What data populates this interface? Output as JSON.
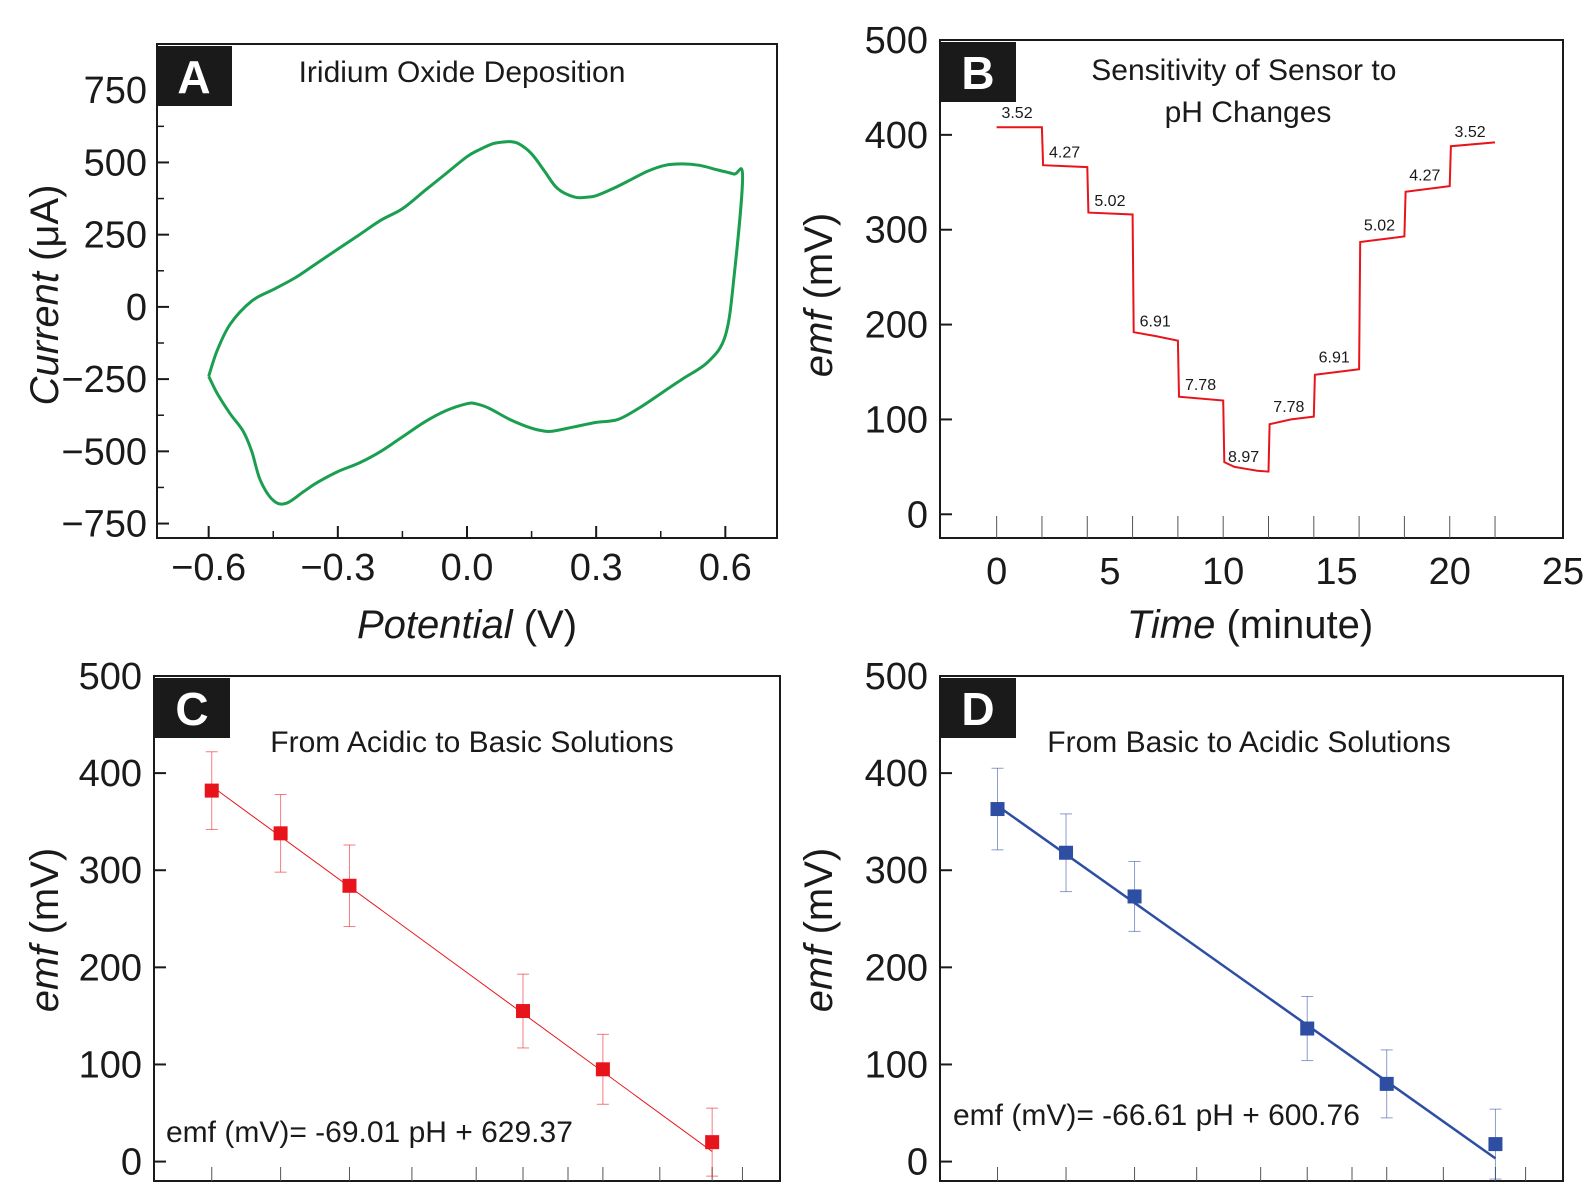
{
  "chart_data": [
    {
      "panel": "A",
      "type": "line",
      "title": "Iridium Oxide Deposition",
      "xlabel": "Potential",
      "xunit": "(V)",
      "ylabel": "Current",
      "yunit": "(μA)",
      "xlim": [
        -0.72,
        0.72
      ],
      "ylim": [
        -800,
        910
      ],
      "xticks": [
        -0.6,
        -0.3,
        0.0,
        0.3,
        0.6
      ],
      "xtick_labels": [
        "−0.6",
        "−0.3",
        "0.0",
        "0.3",
        "0.6"
      ],
      "yticks": [
        -750,
        -500,
        -250,
        0,
        250,
        500,
        750
      ],
      "ytick_labels": [
        "−750",
        "−500",
        "−250",
        "0",
        "250",
        "500",
        "750"
      ],
      "color": "#1a9e50",
      "series": [
        {
          "x": [
            -0.6,
            -0.58,
            -0.55,
            -0.5,
            -0.45,
            -0.4,
            -0.35,
            -0.3,
            -0.25,
            -0.2,
            -0.15,
            -0.1,
            -0.05,
            0.0,
            0.03,
            0.06,
            0.08,
            0.1,
            0.12,
            0.15,
            0.18,
            0.21,
            0.25,
            0.28,
            0.3,
            0.34,
            0.38,
            0.42,
            0.46,
            0.5,
            0.54,
            0.58,
            0.62,
            0.64,
            0.62,
            0.6,
            0.56,
            0.5,
            0.45,
            0.4,
            0.35,
            0.3,
            0.25,
            0.2,
            0.18,
            0.15,
            0.1,
            0.05,
            0.02,
            0.0,
            -0.05,
            -0.1,
            -0.15,
            -0.2,
            -0.25,
            -0.3,
            -0.35,
            -0.38,
            -0.42,
            -0.45,
            -0.48,
            -0.5,
            -0.52,
            -0.55,
            -0.58,
            -0.6
          ],
          "y": [
            -240,
            -150,
            -60,
            20,
            60,
            100,
            150,
            200,
            250,
            300,
            340,
            400,
            460,
            520,
            545,
            565,
            570,
            572,
            565,
            530,
            470,
            410,
            380,
            380,
            385,
            410,
            440,
            470,
            490,
            495,
            490,
            475,
            460,
            450,
            100,
            -100,
            -190,
            -250,
            -300,
            -350,
            -390,
            -400,
            -415,
            -430,
            -430,
            -420,
            -390,
            -350,
            -335,
            -335,
            -360,
            -400,
            -450,
            -500,
            -540,
            -570,
            -610,
            -640,
            -680,
            -670,
            -600,
            -500,
            -430,
            -370,
            -300,
            -240
          ]
        }
      ]
    },
    {
      "panel": "B",
      "type": "line",
      "title": "Sensitivity of Sensor to pH Changes",
      "xlabel": "Time",
      "xunit": "(minute)",
      "ylabel": "emf",
      "yunit": "(mV)",
      "xlim": [
        -2.5,
        25
      ],
      "ylim": [
        -25,
        500
      ],
      "xticks": [
        0,
        5,
        10,
        15,
        20,
        25
      ],
      "yticks": [
        0,
        100,
        200,
        300,
        400,
        500
      ],
      "color": "#e8141b",
      "series": [
        {
          "x": [
            0,
            2,
            2.05,
            4,
            4.05,
            6,
            6.05,
            7,
            8,
            8.05,
            10,
            10.05,
            10.5,
            11,
            11.5,
            12,
            12.05,
            13,
            14,
            14.05,
            16,
            16.05,
            18,
            18.05,
            20,
            20.05,
            22
          ],
          "y": [
            408,
            408,
            368,
            366,
            318,
            316,
            192,
            188,
            183,
            124,
            120,
            55,
            50,
            48,
            46,
            45,
            95,
            100,
            103,
            147,
            153,
            287,
            293,
            340,
            346,
            388,
            392
          ]
        }
      ],
      "annotations": [
        {
          "text": "3.52",
          "x": 0.9,
          "y": 418
        },
        {
          "text": "4.27",
          "x": 3.0,
          "y": 376
        },
        {
          "text": "5.02",
          "x": 5.0,
          "y": 325
        },
        {
          "text": "6.91",
          "x": 7.0,
          "y": 198
        },
        {
          "text": "7.78",
          "x": 9.0,
          "y": 131
        },
        {
          "text": "8.97",
          "x": 10.9,
          "y": 55
        },
        {
          "text": "7.78",
          "x": 12.9,
          "y": 108
        },
        {
          "text": "6.91",
          "x": 14.9,
          "y": 160
        },
        {
          "text": "5.02",
          "x": 16.9,
          "y": 299
        },
        {
          "text": "4.27",
          "x": 18.9,
          "y": 352
        },
        {
          "text": "3.52",
          "x": 20.9,
          "y": 398
        }
      ]
    },
    {
      "panel": "C",
      "type": "scatter",
      "title": "From Acidic to Basic Solutions",
      "ylabel": "emf",
      "yunit": "(mV)",
      "ylim": [
        -20,
        500
      ],
      "yticks": [
        0,
        100,
        200,
        300,
        400,
        500
      ],
      "color": "#e8141b",
      "equation": "emf (mV)= -69.01 pH + 629.37",
      "series": [
        {
          "x": [
            3.52,
            4.27,
            5.02,
            6.91,
            7.78,
            8.97
          ],
          "y": [
            382,
            338,
            284,
            155,
            95,
            20
          ],
          "error": [
            40,
            40,
            42,
            38,
            36,
            35
          ]
        }
      ],
      "fit": {
        "slope": -69.01,
        "intercept": 629.37
      }
    },
    {
      "panel": "D",
      "type": "scatter",
      "title": "From Basic to Acidic Solutions",
      "ylabel": "emf",
      "yunit": "(mV)",
      "ylim": [
        -20,
        500
      ],
      "yticks": [
        0,
        100,
        200,
        300,
        400,
        500
      ],
      "color": "#2e4ea3",
      "equation": "emf (mV)= -66.61 pH + 600.76",
      "series": [
        {
          "x": [
            3.52,
            4.27,
            5.02,
            6.91,
            7.78,
            8.97
          ],
          "y": [
            363,
            318,
            273,
            137,
            80,
            18
          ],
          "error": [
            42,
            40,
            36,
            33,
            35,
            36
          ]
        }
      ],
      "fit": {
        "slope": -66.61,
        "intercept": 600.76
      }
    }
  ]
}
